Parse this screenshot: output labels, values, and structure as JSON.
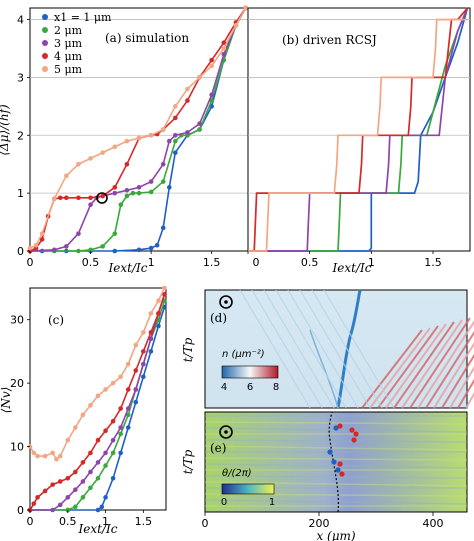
{
  "colors": {
    "x1": "#1f5fc8",
    "x2": "#3aa83a",
    "x3": "#8e44ad",
    "x4": "#d62828",
    "x5": "#f4a582",
    "grid": "#bdbdbd"
  },
  "panel_a": {
    "label": "(a) simulation",
    "ylabel": "⟨Δμ⟩/(hf)",
    "xlabel": "Iext/Ic",
    "yticks": [
      "0",
      "1",
      "2",
      "3",
      "4"
    ],
    "xticks": [
      "0",
      "0.5",
      "1",
      "1.5"
    ],
    "legend": [
      "x1 = 1 μm",
      "2 μm",
      "3 μm",
      "4 μm",
      "5 μm"
    ]
  },
  "panel_b": {
    "label": "(b) driven RCSJ",
    "xlabel": "Iext/Ic",
    "xticks": [
      "0",
      "0.5",
      "1",
      "1.5"
    ]
  },
  "panel_c": {
    "label": "(c)",
    "ylabel": "⟨Nv⟩",
    "xlabel": "Iext/Ic",
    "yticks": [
      "0",
      "10",
      "20",
      "30"
    ],
    "xticks": [
      "0",
      "0.5",
      "1",
      "1.5"
    ]
  },
  "panel_d": {
    "label": "(d)",
    "ylabel": "t/Tp",
    "colorbar_label": "n (μm⁻²)",
    "colorbar_ticks": [
      "4",
      "6",
      "8"
    ]
  },
  "panel_e": {
    "label": "(e)",
    "ylabel": "t/Tp",
    "xlabel": "x (μm)",
    "xticks": [
      "0",
      "200",
      "400"
    ],
    "colorbar_label": "θ/(2π)",
    "colorbar_ticks": [
      "0",
      "1"
    ]
  },
  "chart_data": [
    {
      "type": "line",
      "panel": "a",
      "xlim": [
        0,
        1.8
      ],
      "ylim": [
        0,
        4.2
      ],
      "grid": "horizontal",
      "legend_position": "top-left",
      "series": [
        {
          "name": "x1 = 1 μm",
          "x": [
            0,
            0.1,
            0.3,
            0.5,
            0.7,
            0.9,
            1.0,
            1.05,
            1.1,
            1.15,
            1.2,
            1.3,
            1.4,
            1.5,
            1.6,
            1.7,
            1.78
          ],
          "y": [
            0,
            0,
            0,
            0,
            0,
            0.02,
            0.05,
            0.1,
            0.4,
            1.1,
            1.7,
            2.0,
            2.1,
            2.5,
            3.3,
            3.9,
            4.2
          ]
        },
        {
          "name": "2 μm",
          "x": [
            0,
            0.2,
            0.4,
            0.5,
            0.6,
            0.7,
            0.75,
            0.8,
            0.85,
            0.9,
            1.0,
            1.1,
            1.2,
            1.25,
            1.3,
            1.4,
            1.5,
            1.6,
            1.7,
            1.78
          ],
          "y": [
            0,
            0,
            0,
            0.02,
            0.08,
            0.3,
            0.8,
            0.95,
            1.0,
            1.0,
            1.02,
            1.2,
            1.9,
            2.0,
            2.0,
            2.1,
            2.6,
            3.3,
            3.9,
            4.2
          ]
        },
        {
          "name": "3 μm",
          "x": [
            0,
            0.2,
            0.3,
            0.4,
            0.5,
            0.55,
            0.6,
            0.7,
            0.8,
            0.9,
            1.0,
            1.1,
            1.15,
            1.2,
            1.3,
            1.4,
            1.5,
            1.6,
            1.7,
            1.78
          ],
          "y": [
            0,
            0.02,
            0.08,
            0.3,
            0.8,
            0.92,
            0.95,
            1.0,
            1.05,
            1.1,
            1.2,
            1.5,
            1.9,
            2.0,
            2.05,
            2.2,
            2.7,
            3.4,
            3.9,
            4.2
          ]
        },
        {
          "name": "4 μm",
          "x": [
            0,
            0.05,
            0.1,
            0.15,
            0.2,
            0.25,
            0.3,
            0.4,
            0.5,
            0.6,
            0.7,
            0.8,
            0.9,
            1.0,
            1.05,
            1.1,
            1.2,
            1.3,
            1.4,
            1.5,
            1.6,
            1.7,
            1.78
          ],
          "y": [
            0,
            0.05,
            0.2,
            0.6,
            0.9,
            0.92,
            0.92,
            0.92,
            0.92,
            0.95,
            1.1,
            1.5,
            1.95,
            2.0,
            2.02,
            2.1,
            2.3,
            2.6,
            3.0,
            3.3,
            3.6,
            3.95,
            4.2
          ]
        },
        {
          "name": "5 μm",
          "x": [
            0,
            0.05,
            0.1,
            0.2,
            0.3,
            0.4,
            0.5,
            0.6,
            0.7,
            0.8,
            0.9,
            1.0,
            1.1,
            1.2,
            1.3,
            1.4,
            1.5,
            1.6,
            1.7,
            1.78
          ],
          "y": [
            0.05,
            0.1,
            0.3,
            0.9,
            1.3,
            1.5,
            1.6,
            1.7,
            1.8,
            1.9,
            1.95,
            2.0,
            2.1,
            2.5,
            2.8,
            3.0,
            3.2,
            3.5,
            3.9,
            4.2
          ]
        }
      ]
    },
    {
      "type": "line",
      "panel": "b",
      "xlim": [
        0,
        1.8
      ],
      "ylim": [
        0,
        4.2
      ],
      "grid": "horizontal",
      "series": [
        {
          "name": "x1 = 1 μm",
          "x": [
            0,
            0.98,
            1.0,
            1.0,
            1.35,
            1.38,
            1.4,
            1.5,
            1.6,
            1.7,
            1.78
          ],
          "y": [
            0,
            0,
            0.05,
            1.0,
            1.0,
            1.2,
            2.0,
            2.4,
            3.0,
            3.6,
            4.2
          ]
        },
        {
          "name": "2 μm",
          "x": [
            0,
            0.73,
            0.74,
            0.75,
            1.22,
            1.24,
            1.25,
            1.45,
            1.5,
            1.6,
            1.7,
            1.78
          ],
          "y": [
            0,
            0,
            0.5,
            1.0,
            1.0,
            1.5,
            2.0,
            2.0,
            2.4,
            3.2,
            3.8,
            4.2
          ]
        },
        {
          "name": "3 μm",
          "x": [
            0,
            0.48,
            0.49,
            0.5,
            1.12,
            1.14,
            1.15,
            1.55,
            1.6,
            1.7,
            1.78
          ],
          "y": [
            0,
            0,
            0.5,
            1.0,
            1.0,
            1.5,
            2.0,
            2.0,
            3.0,
            3.8,
            4.2
          ]
        },
        {
          "name": "4 μm",
          "x": [
            0,
            0.05,
            0.06,
            0.07,
            0.9,
            0.92,
            0.93,
            1.3,
            1.32,
            1.33,
            1.6,
            1.65,
            1.7,
            1.78
          ],
          "y": [
            0,
            0,
            0.5,
            1.0,
            1.0,
            1.5,
            2.0,
            2.0,
            2.5,
            3.0,
            3.0,
            4.0,
            4.0,
            4.2
          ]
        },
        {
          "name": "5 μm",
          "x": [
            0,
            0.15,
            0.16,
            0.17,
            0.7,
            0.72,
            0.73,
            1.05,
            1.07,
            1.08,
            1.5,
            1.52,
            1.53,
            1.78
          ],
          "y": [
            0,
            0,
            0.5,
            1.0,
            1.0,
            1.5,
            2.0,
            2.0,
            2.5,
            3.0,
            3.0,
            3.5,
            4.0,
            4.0
          ]
        }
      ]
    },
    {
      "type": "line",
      "panel": "c",
      "xlim": [
        0,
        1.8
      ],
      "ylim": [
        0,
        35
      ],
      "series": [
        {
          "name": "x1 = 1 μm",
          "x": [
            0,
            0.5,
            0.9,
            0.95,
            1.0,
            1.1,
            1.2,
            1.3,
            1.4,
            1.5,
            1.6,
            1.7,
            1.78
          ],
          "y": [
            0,
            0,
            0,
            0.5,
            2,
            5,
            9,
            13,
            17,
            21,
            25,
            29,
            32
          ]
        },
        {
          "name": "2 μm",
          "x": [
            0,
            0.5,
            0.6,
            0.7,
            0.8,
            0.9,
            1.0,
            1.1,
            1.2,
            1.3,
            1.4,
            1.5,
            1.6,
            1.7,
            1.78
          ],
          "y": [
            0,
            0,
            0.5,
            2,
            3.5,
            5,
            7,
            9,
            12,
            15,
            19,
            23,
            27,
            30,
            33
          ]
        },
        {
          "name": "3 μm",
          "x": [
            0,
            0.3,
            0.4,
            0.5,
            0.6,
            0.7,
            0.8,
            0.9,
            1.0,
            1.1,
            1.2,
            1.3,
            1.4,
            1.5,
            1.6,
            1.7,
            1.78
          ],
          "y": [
            0,
            0,
            0.8,
            2,
            3.2,
            4.5,
            6,
            7.5,
            9,
            11,
            13,
            16,
            19,
            23,
            27,
            31,
            34
          ]
        },
        {
          "name": "4 μm",
          "x": [
            0,
            0.05,
            0.1,
            0.2,
            0.3,
            0.4,
            0.5,
            0.6,
            0.7,
            0.8,
            0.9,
            1.0,
            1.1,
            1.2,
            1.3,
            1.4,
            1.5,
            1.6,
            1.7,
            1.78
          ],
          "y": [
            0,
            1,
            2,
            3,
            4,
            4.5,
            5,
            6,
            7.5,
            9,
            11,
            12.5,
            14,
            16,
            19,
            22,
            25,
            28,
            31,
            34
          ]
        },
        {
          "name": "5 μm",
          "x": [
            0,
            0.05,
            0.1,
            0.2,
            0.3,
            0.35,
            0.4,
            0.5,
            0.6,
            0.7,
            0.8,
            0.9,
            1.0,
            1.1,
            1.2,
            1.3,
            1.4,
            1.5,
            1.6,
            1.7,
            1.78
          ],
          "y": [
            10,
            9,
            8.5,
            8.5,
            9,
            8,
            8.5,
            11,
            13,
            15,
            16.5,
            18,
            19,
            20,
            21,
            23,
            26,
            28,
            31,
            33,
            35
          ]
        }
      ]
    },
    {
      "type": "heatmap",
      "panel": "d",
      "quantity": "n (μm⁻²)",
      "colorscale": [
        "#2166ac",
        "#f7f7f7",
        "#b2182b"
      ],
      "range": [
        4,
        8
      ],
      "note": "density map in t/Tp vs x"
    },
    {
      "type": "heatmap",
      "panel": "e",
      "quantity": "θ/(2π)",
      "colorscale": [
        "#1f2f8f",
        "#4fb5c7",
        "#f2f24e"
      ],
      "range": [
        0,
        1
      ],
      "x_axis_ticks": [
        0,
        200,
        400
      ]
    }
  ]
}
